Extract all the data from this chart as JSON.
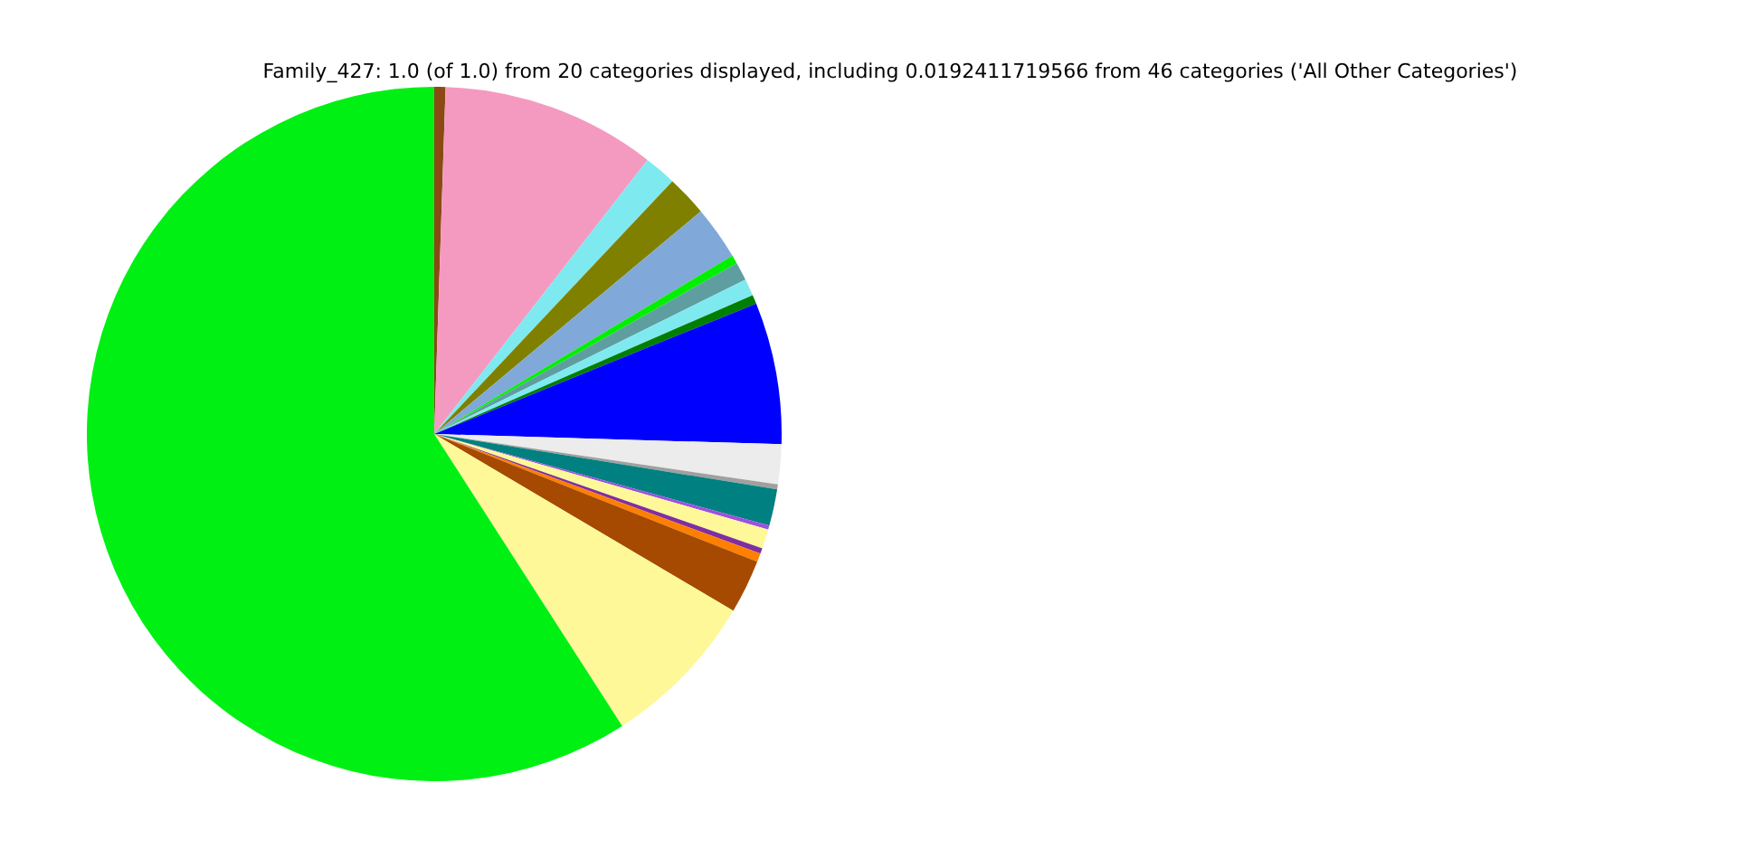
{
  "chart_data": {
    "type": "pie",
    "title": "Family_427: 1.0 (of 1.0) from 20 categories displayed, including 0.0192411719566 from 46 categories ('All Other Categories')",
    "categories": [
      null,
      null,
      null,
      null,
      null,
      null,
      null,
      null,
      null,
      null,
      null,
      null,
      null,
      null,
      null,
      null,
      null,
      null,
      null,
      null
    ],
    "values": [
      0.52,
      10.0,
      1.5,
      1.9,
      2.5,
      0.4,
      0.85,
      0.78,
      0.42,
      6.6,
      1.85,
      0.23,
      1.7,
      0.19,
      0.9,
      0.26,
      0.4,
      2.5,
      7.4,
      59.1
    ],
    "colors": [
      "#8b4a14",
      "#f49ac1",
      "#7fe9f0",
      "#808000",
      "#80a8d8",
      "#00f000",
      "#5f9ea0",
      "#7fe9f0",
      "#007f00",
      "#0000ff",
      "#ececec",
      "#a0a0a0",
      "#008080",
      "#9f50e0",
      "#fff899",
      "#7f2f9f",
      "#ff7f00",
      "#a54a00",
      "#fff899",
      "#00f014"
    ],
    "legend": false
  }
}
